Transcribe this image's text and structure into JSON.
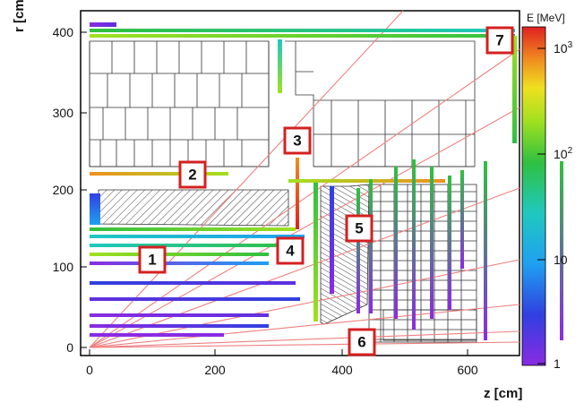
{
  "axes": {
    "x_label": "z [cm]",
    "y_label": "r [cm]",
    "x_ticks": [
      "0",
      "200",
      "400",
      "600"
    ],
    "y_ticks": [
      "0",
      "100",
      "200",
      "300",
      "400"
    ]
  },
  "colorbar": {
    "title": "E [MeV]",
    "ticks": [
      {
        "base": "1",
        "exp": ""
      },
      {
        "base": "10",
        "exp": ""
      },
      {
        "base": "10",
        "exp": "2"
      },
      {
        "base": "10",
        "exp": "3"
      }
    ]
  },
  "markers": [
    {
      "id": "1",
      "label": "1"
    },
    {
      "id": "2",
      "label": "2"
    },
    {
      "id": "3",
      "label": "3"
    },
    {
      "id": "4",
      "label": "4"
    },
    {
      "id": "5",
      "label": "5"
    },
    {
      "id": "6",
      "label": "6"
    },
    {
      "id": "7",
      "label": "7"
    }
  ],
  "colors": {
    "frame": "#000000",
    "marker_border": "#d42020",
    "track_line": "#f08080",
    "module_line": "#333333"
  }
}
